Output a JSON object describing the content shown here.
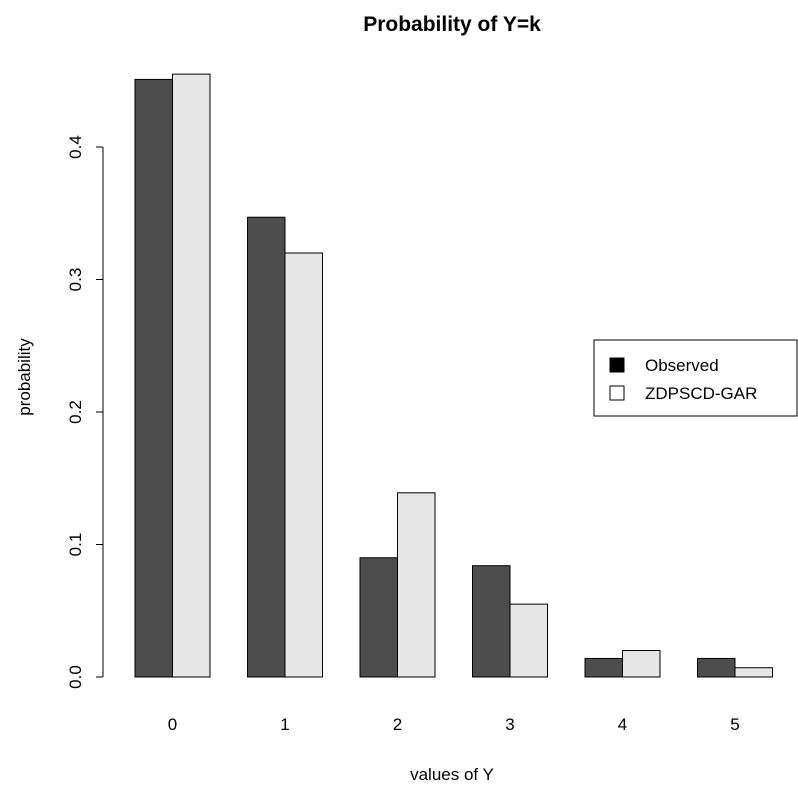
{
  "chart_data": {
    "type": "bar",
    "title": "Probability of Y=k",
    "xlabel": "values of Y",
    "ylabel": "probability",
    "categories": [
      "0",
      "1",
      "2",
      "3",
      "4",
      "5"
    ],
    "series": [
      {
        "name": "Observed",
        "color": "#4d4d4d",
        "values": [
          0.451,
          0.347,
          0.09,
          0.084,
          0.014,
          0.014
        ]
      },
      {
        "name": "ZDPSCD-GAR",
        "color": "#e6e6e6",
        "values": [
          0.455,
          0.32,
          0.139,
          0.055,
          0.02,
          0.007
        ]
      }
    ],
    "ylim": [
      0,
      0.455
    ],
    "yticks": [
      "0.0",
      "0.1",
      "0.2",
      "0.3",
      "0.4"
    ],
    "ytick_values": [
      0,
      0.1,
      0.2,
      0.3,
      0.4
    ],
    "legend": {
      "placement": "right",
      "entries": [
        "Observed",
        "ZDPSCD-GAR"
      ]
    },
    "grid": false
  }
}
